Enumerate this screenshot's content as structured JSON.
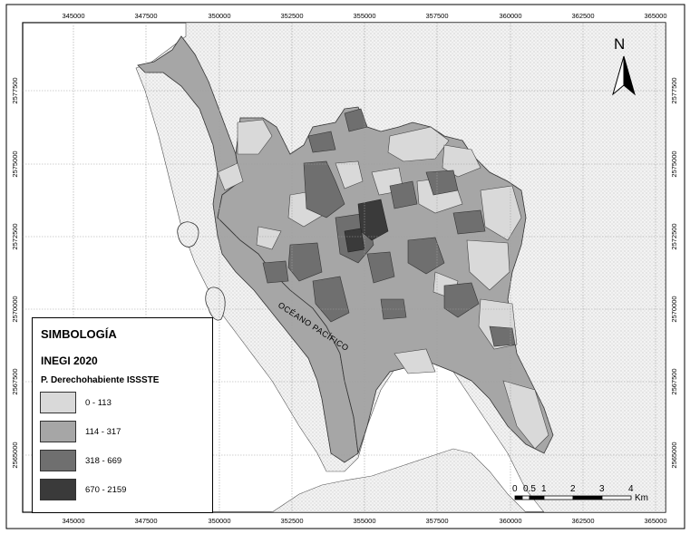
{
  "map": {
    "x_ticks": [
      "345000",
      "347500",
      "350000",
      "352500",
      "355000",
      "357500",
      "360000",
      "362500",
      "365000"
    ],
    "y_ticks": [
      "2577500",
      "2575000",
      "2572500",
      "2570000",
      "2567500",
      "2565000"
    ],
    "ocean_label": "OCÉANO PACÍFICO",
    "north_label": "N",
    "scale": {
      "ticks": [
        "0",
        "0.5",
        "1",
        "2",
        "3",
        "4"
      ],
      "unit": "Km"
    }
  },
  "legend": {
    "title": "SIMBOLOGÍA",
    "subtitle": "INEGI 2020",
    "variable": "P. Derechohabiente ISSSTE",
    "classes": [
      {
        "label": "0 - 113",
        "color": "#d9d9d9"
      },
      {
        "label": "114 - 317",
        "color": "#a6a6a6"
      },
      {
        "label": "318 - 669",
        "color": "#6f6f6f"
      },
      {
        "label": "670 - 2159",
        "color": "#3a3a3a"
      }
    ]
  },
  "colors": {
    "land": "#ececec",
    "sea": "#ffffff",
    "stipple": "#c8c8c8",
    "grid": "#9a9a9a"
  }
}
